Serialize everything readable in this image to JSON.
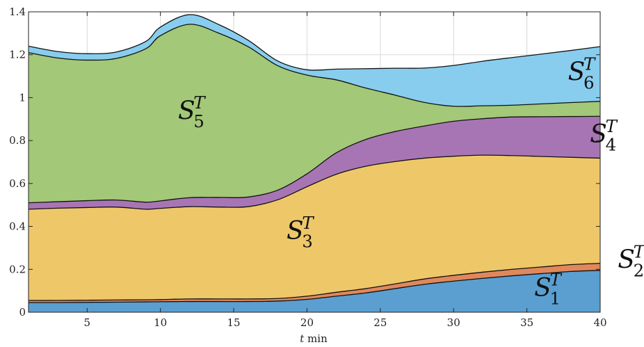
{
  "chart_data": {
    "type": "area",
    "stacked": true,
    "title": "",
    "xlabel": "t min",
    "ylabel": "",
    "xlim": [
      1,
      40
    ],
    "ylim": [
      0,
      1.4
    ],
    "xticks": [
      5,
      10,
      15,
      20,
      25,
      30,
      35,
      40
    ],
    "yticks": [
      0,
      0.2,
      0.4,
      0.6,
      0.8,
      1,
      1.2,
      1.4
    ],
    "ytick_labels": [
      "0",
      "0.2",
      "0.4",
      "0.6",
      "0.8",
      "1",
      "1.2",
      "1.4"
    ],
    "grid": true,
    "x": [
      1,
      3,
      5,
      7,
      9,
      10,
      12,
      14,
      16,
      18,
      20,
      22,
      24,
      26,
      28,
      30,
      32,
      34,
      36,
      38,
      40
    ],
    "series": [
      {
        "name": "S1T",
        "label_base": "S",
        "label_sup": "T",
        "label_sub": "1",
        "color": "#5a9fd0",
        "values": [
          0.045,
          0.045,
          0.046,
          0.047,
          0.048,
          0.049,
          0.05,
          0.05,
          0.05,
          0.052,
          0.06,
          0.075,
          0.09,
          0.11,
          0.13,
          0.145,
          0.158,
          0.17,
          0.18,
          0.19,
          0.195
        ]
      },
      {
        "name": "S2T",
        "label_base": "S",
        "label_sup": "T",
        "label_sub": "2",
        "color": "#e0885c",
        "values": [
          0.01,
          0.01,
          0.01,
          0.01,
          0.01,
          0.01,
          0.012,
          0.012,
          0.012,
          0.012,
          0.015,
          0.018,
          0.02,
          0.022,
          0.025,
          0.027,
          0.029,
          0.03,
          0.031,
          0.032,
          0.033
        ]
      },
      {
        "name": "S3T",
        "label_base": "S",
        "label_sup": "T",
        "label_sub": "3",
        "color": "#eec769",
        "values": [
          0.425,
          0.43,
          0.432,
          0.433,
          0.422,
          0.425,
          0.43,
          0.428,
          0.43,
          0.46,
          0.51,
          0.55,
          0.57,
          0.57,
          0.563,
          0.555,
          0.545,
          0.53,
          0.515,
          0.5,
          0.49
        ]
      },
      {
        "name": "S4T",
        "label_base": "S",
        "label_sup": "T",
        "label_sub": "4",
        "color": "#a875b4",
        "values": [
          0.03,
          0.03,
          0.032,
          0.033,
          0.033,
          0.035,
          0.042,
          0.045,
          0.045,
          0.045,
          0.06,
          0.1,
          0.125,
          0.14,
          0.15,
          0.163,
          0.17,
          0.18,
          0.185,
          0.19,
          0.195
        ]
      },
      {
        "name": "S5T",
        "label_base": "S",
        "label_sup": "T",
        "label_sub": "5",
        "color": "#a2c878",
        "values": [
          0.7,
          0.67,
          0.655,
          0.66,
          0.715,
          0.77,
          0.808,
          0.765,
          0.7,
          0.58,
          0.46,
          0.34,
          0.24,
          0.17,
          0.11,
          0.07,
          0.06,
          0.055,
          0.06,
          0.065,
          0.07
        ]
      },
      {
        "name": "S6T",
        "label_base": "S",
        "label_sup": "T",
        "label_sub": "6",
        "color": "#88cdee",
        "values": [
          0.03,
          0.03,
          0.03,
          0.03,
          0.034,
          0.04,
          0.045,
          0.04,
          0.03,
          0.022,
          0.025,
          0.05,
          0.09,
          0.125,
          0.16,
          0.19,
          0.208,
          0.222,
          0.232,
          0.243,
          0.255
        ]
      }
    ],
    "series_labels": [
      {
        "series": "S1T",
        "x": 35.5,
        "y": 0.075,
        "size": 36
      },
      {
        "series": "S2T",
        "x": 41.2,
        "y": 0.205,
        "size": 36
      },
      {
        "series": "S3T",
        "x": 18.6,
        "y": 0.34,
        "size": 36
      },
      {
        "series": "S4T",
        "x": 39.3,
        "y": 0.79,
        "size": 36
      },
      {
        "series": "S5T",
        "x": 11.2,
        "y": 0.9,
        "size": 36
      },
      {
        "series": "S6T",
        "x": 37.8,
        "y": 1.08,
        "size": 36
      }
    ]
  }
}
